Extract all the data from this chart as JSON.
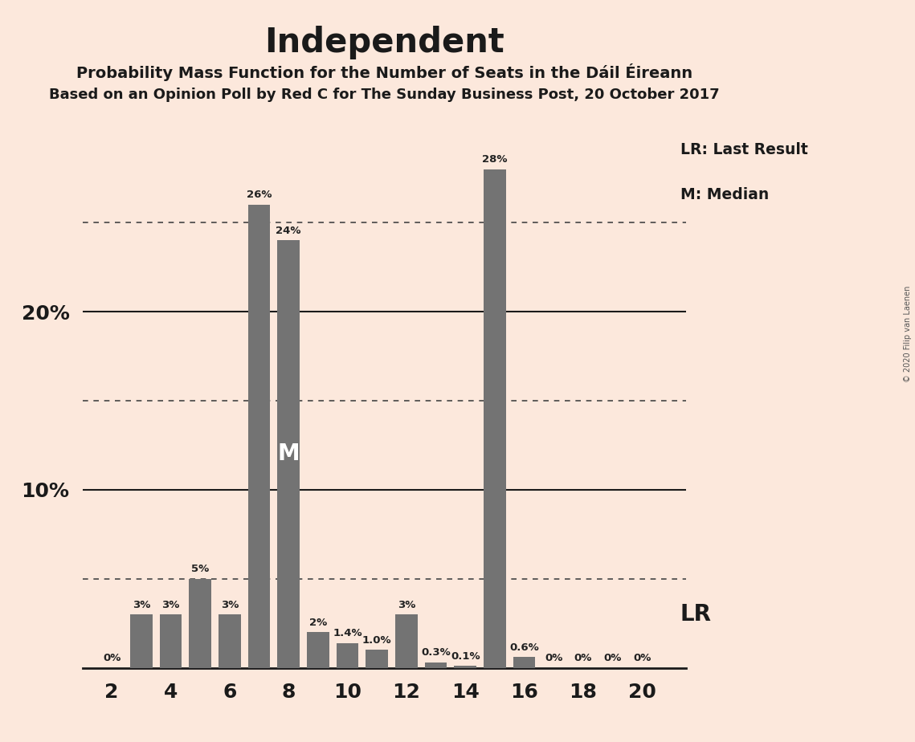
{
  "title": "Independent",
  "subtitle1": "Probability Mass Function for the Number of Seats in the Dáil Éireann",
  "subtitle2": "Based on an Opinion Poll by Red C for The Sunday Business Post, 20 October 2017",
  "copyright": "© 2020 Filip van Laenen",
  "seats": [
    2,
    3,
    4,
    5,
    6,
    7,
    8,
    9,
    10,
    11,
    12,
    13,
    14,
    15,
    16,
    17,
    18,
    19,
    20
  ],
  "values": [
    0.0,
    3.0,
    3.0,
    5.0,
    3.0,
    26.0,
    24.0,
    2.0,
    1.4,
    1.0,
    3.0,
    0.3,
    0.1,
    28.0,
    0.6,
    0.0,
    0.0,
    0.0,
    0.0
  ],
  "labels": [
    "0%",
    "3%",
    "3%",
    "5%",
    "3%",
    "26%",
    "24%",
    "2%",
    "1.4%",
    "1.0%",
    "3%",
    "0.3%",
    "0.1%",
    "28%",
    "0.6%",
    "0%",
    "0%",
    "0%",
    "0%"
  ],
  "bar_color": "#737373",
  "background_color": "#fce8dc",
  "median_seat": 8,
  "lr_seat": 15,
  "lr_label": "LR",
  "median_label": "M",
  "legend_lr": "LR: Last Result",
  "legend_m": "M: Median",
  "solid_lines": [
    10,
    20
  ],
  "dotted_lines": [
    5,
    15,
    25
  ],
  "xlabel_ticks": [
    2,
    4,
    6,
    8,
    10,
    12,
    14,
    16,
    18,
    20
  ],
  "ylim": [
    0,
    30
  ],
  "xlim": [
    1.0,
    21.5
  ]
}
